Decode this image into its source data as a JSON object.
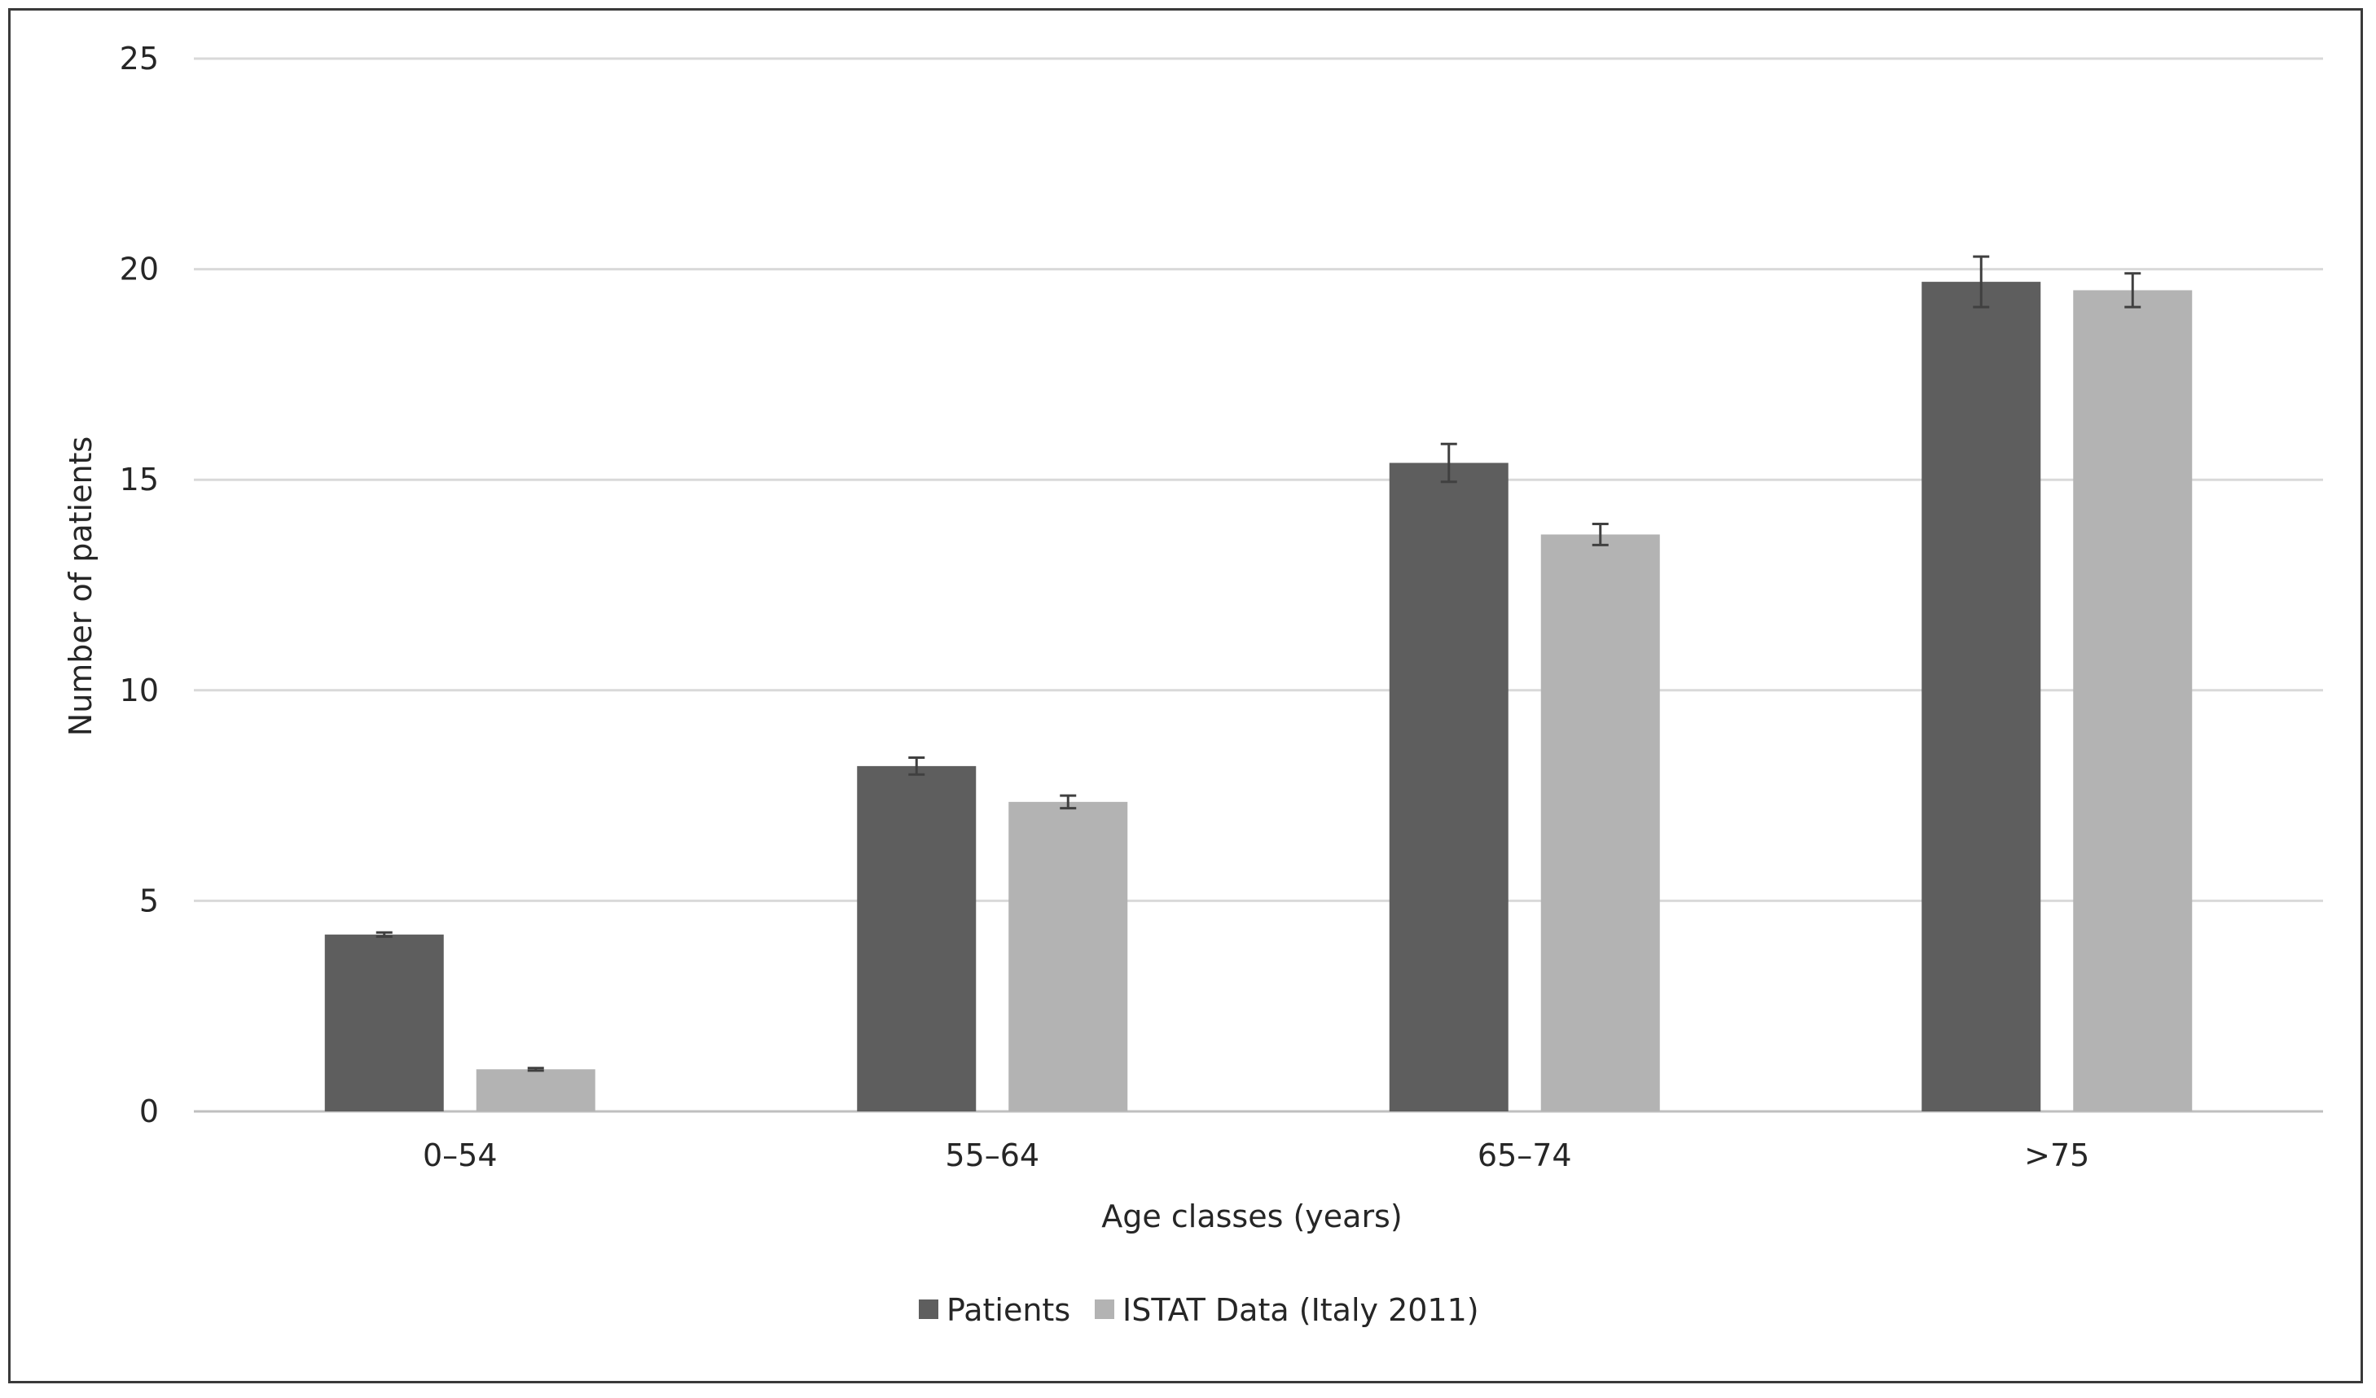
{
  "chart_data": {
    "type": "bar",
    "title": "",
    "xlabel": "Age classes (years)",
    "ylabel": "Number of patients",
    "ylim": [
      0,
      25
    ],
    "yticks": [
      0,
      5,
      10,
      15,
      20,
      25
    ],
    "grid": true,
    "legend_position": "bottom",
    "categories": [
      "0–54",
      "55–64",
      "65–74",
      ">75"
    ],
    "series": [
      {
        "name": "Patients",
        "color": "#5e5e5e",
        "values": [
          4.2,
          8.2,
          15.4,
          19.7
        ],
        "error": [
          0.05,
          0.2,
          0.45,
          0.6
        ]
      },
      {
        "name": "ISTAT Data (Italy 2011)",
        "color": "#b3b3b3",
        "values": [
          1.0,
          7.35,
          13.7,
          19.5
        ],
        "error": [
          0.03,
          0.15,
          0.25,
          0.4
        ]
      }
    ]
  }
}
